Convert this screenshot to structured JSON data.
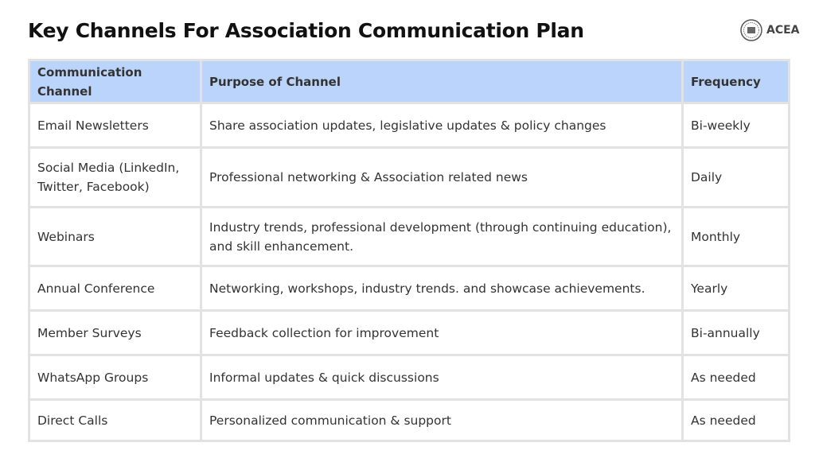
{
  "header": {
    "title": "Key Channels For Association Communication Plan",
    "logo": "ACEA"
  },
  "table": {
    "columns": [
      "Communication Channel",
      "Purpose of Channel",
      "Frequency"
    ],
    "rows": [
      [
        "Email Newsletters",
        "Share association updates, legislative updates & policy changes",
        "Bi-weekly"
      ],
      [
        "Social Media (LinkedIn, Twitter, Facebook)",
        "Professional networking & Association related news",
        "Daily"
      ],
      [
        "Webinars",
        "Industry trends, professional development (through continuing education), and skill enhancement.",
        "Monthly"
      ],
      [
        "Annual Conference",
        "Networking, workshops, industry trends. and showcase achievements.",
        "Yearly"
      ],
      [
        "Member Surveys",
        "Feedback collection for improvement",
        "Bi-annually"
      ],
      [
        "WhatsApp Groups",
        "Informal updates & quick discussions",
        "As needed"
      ],
      [
        "Direct Calls",
        "Personalized communication & support",
        "As needed"
      ]
    ]
  }
}
